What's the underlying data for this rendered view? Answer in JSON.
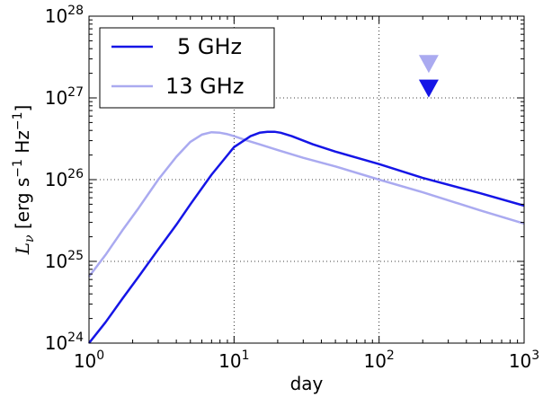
{
  "chart_data": {
    "type": "line",
    "xscale": "log",
    "yscale": "log",
    "xlim": [
      1,
      1000
    ],
    "ylim": [
      1e+24,
      1e+28
    ],
    "xlabel": "day",
    "ylabel": "L_ν [erg s⁻¹ Hz⁻¹]",
    "xticks": [
      {
        "base": "10",
        "exp": "0",
        "value": 1
      },
      {
        "base": "10",
        "exp": "1",
        "value": 10
      },
      {
        "base": "10",
        "exp": "2",
        "value": 100
      },
      {
        "base": "10",
        "exp": "3",
        "value": 1000
      }
    ],
    "yticks": [
      {
        "base": "10",
        "exp": "24",
        "value": 1e+24
      },
      {
        "base": "10",
        "exp": "25",
        "value": 1e+25
      },
      {
        "base": "10",
        "exp": "26",
        "value": 1e+26
      },
      {
        "base": "10",
        "exp": "27",
        "value": 1e+27
      },
      {
        "base": "10",
        "exp": "28",
        "value": 1e+28
      }
    ],
    "grid": true,
    "legend_position": "top-left",
    "series": [
      {
        "name": "5 GHz",
        "color": "#1515e6",
        "x": [
          1.0,
          1.3,
          1.7,
          2.2,
          3.0,
          4.0,
          5.0,
          7.0,
          10.0,
          13.0,
          15.0,
          17.0,
          19.0,
          21.0,
          25.0,
          35.0,
          50.0,
          100.0,
          200.0,
          500.0,
          1000.0
        ],
        "y": [
          1e+24,
          1.8e+24,
          3.5e+24,
          6.5e+24,
          1.4e+25,
          2.8e+25,
          5e+25,
          1.15e+26,
          2.5e+26,
          3.4e+26,
          3.75e+26,
          3.85e+26,
          3.85e+26,
          3.75e+26,
          3.4e+26,
          2.7e+26,
          2.2e+26,
          1.55e+26,
          1.05e+26,
          6.8e+25,
          4.8e+25
        ]
      },
      {
        "name": "13 GHz",
        "color": "#aaaaf0",
        "x": [
          1.0,
          1.3,
          1.7,
          2.2,
          3.0,
          4.0,
          5.0,
          6.0,
          7.0,
          8.0,
          9.0,
          10.0,
          12.0,
          15.0,
          20.0,
          30.0,
          50.0,
          100.0,
          200.0,
          500.0,
          1000.0
        ],
        "y": [
          6.5e+24,
          1.2e+25,
          2.4e+25,
          4.5e+25,
          1e+26,
          1.9e+26,
          2.9e+26,
          3.55e+26,
          3.8e+26,
          3.75e+26,
          3.6e+26,
          3.4e+26,
          3.05e+26,
          2.7e+26,
          2.3e+26,
          1.85e+26,
          1.45e+26,
          1e+26,
          7e+25,
          4.2e+25,
          2.9e+25
        ]
      }
    ],
    "upper_limits": [
      {
        "series": "13 GHz",
        "x": 220,
        "y": 2.6e+27,
        "color": "#aaaaf0"
      },
      {
        "series": "5 GHz",
        "x": 220,
        "y": 1.3e+27,
        "color": "#1515e6"
      }
    ]
  }
}
